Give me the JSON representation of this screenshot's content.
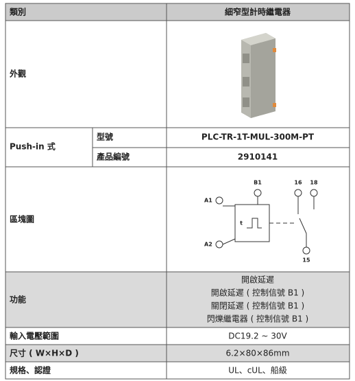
{
  "header": {
    "label": "類別",
    "product": "細窄型計時繼電器"
  },
  "appearance": {
    "label": "外觀"
  },
  "push_in": {
    "label": "Push-in 式",
    "model_label": "型號",
    "model": "PLC-TR-1T-MUL-300M-PT",
    "part_label": "產品編號",
    "part": "2910141"
  },
  "block_diagram": {
    "label": "區塊圖",
    "a1": "A1",
    "a2": "A2",
    "b1": "B1",
    "t16": "16",
    "t18": "18",
    "t15": "15",
    "timer": "t"
  },
  "function": {
    "label": "功能",
    "lines": [
      "開啟延遲",
      "開啟延遲 ( 控制信號 B1 )",
      "關閉延遲 ( 控制信號 B1 )",
      "閃爍繼電器 ( 控制信號 B1 )"
    ]
  },
  "rows": [
    {
      "label": "輸入電壓範圍",
      "value": "DC19.2 ~ 30V"
    },
    {
      "label": "尺寸 ( W×H×D )",
      "value": "6.2×80×86mm"
    },
    {
      "label": "規格、認證",
      "value": "UL、cUL、船級"
    }
  ]
}
